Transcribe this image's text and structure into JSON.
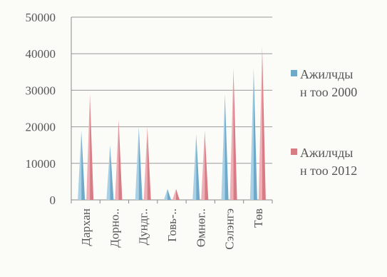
{
  "chart_data": {
    "type": "bar",
    "categories": [
      "Дархан",
      "Дорно..",
      "Дундг..",
      "Говь-..",
      "Өмнөг..",
      "Сэлэнгэ",
      "Төв"
    ],
    "series": [
      {
        "name": "Ажилчдын тоо 2000",
        "legend_lines": [
          "Ажилчды",
          "н тоо 2000"
        ],
        "color": "#6fa9c9",
        "values": [
          19000,
          15000,
          20000,
          3000,
          18000,
          29000,
          36000
        ]
      },
      {
        "name": "Ажилчдын тоо 2012",
        "legend_lines": [
          "Ажилчды",
          "н тоо 2012"
        ],
        "color": "#d77b85",
        "values": [
          29000,
          22000,
          20000,
          3000,
          19000,
          36000,
          42000
        ]
      }
    ],
    "yticks": [
      "0",
      "10000",
      "20000",
      "30000",
      "40000",
      "50000"
    ],
    "ylim": [
      0,
      50000
    ],
    "grid": true,
    "legend_position": "right"
  }
}
